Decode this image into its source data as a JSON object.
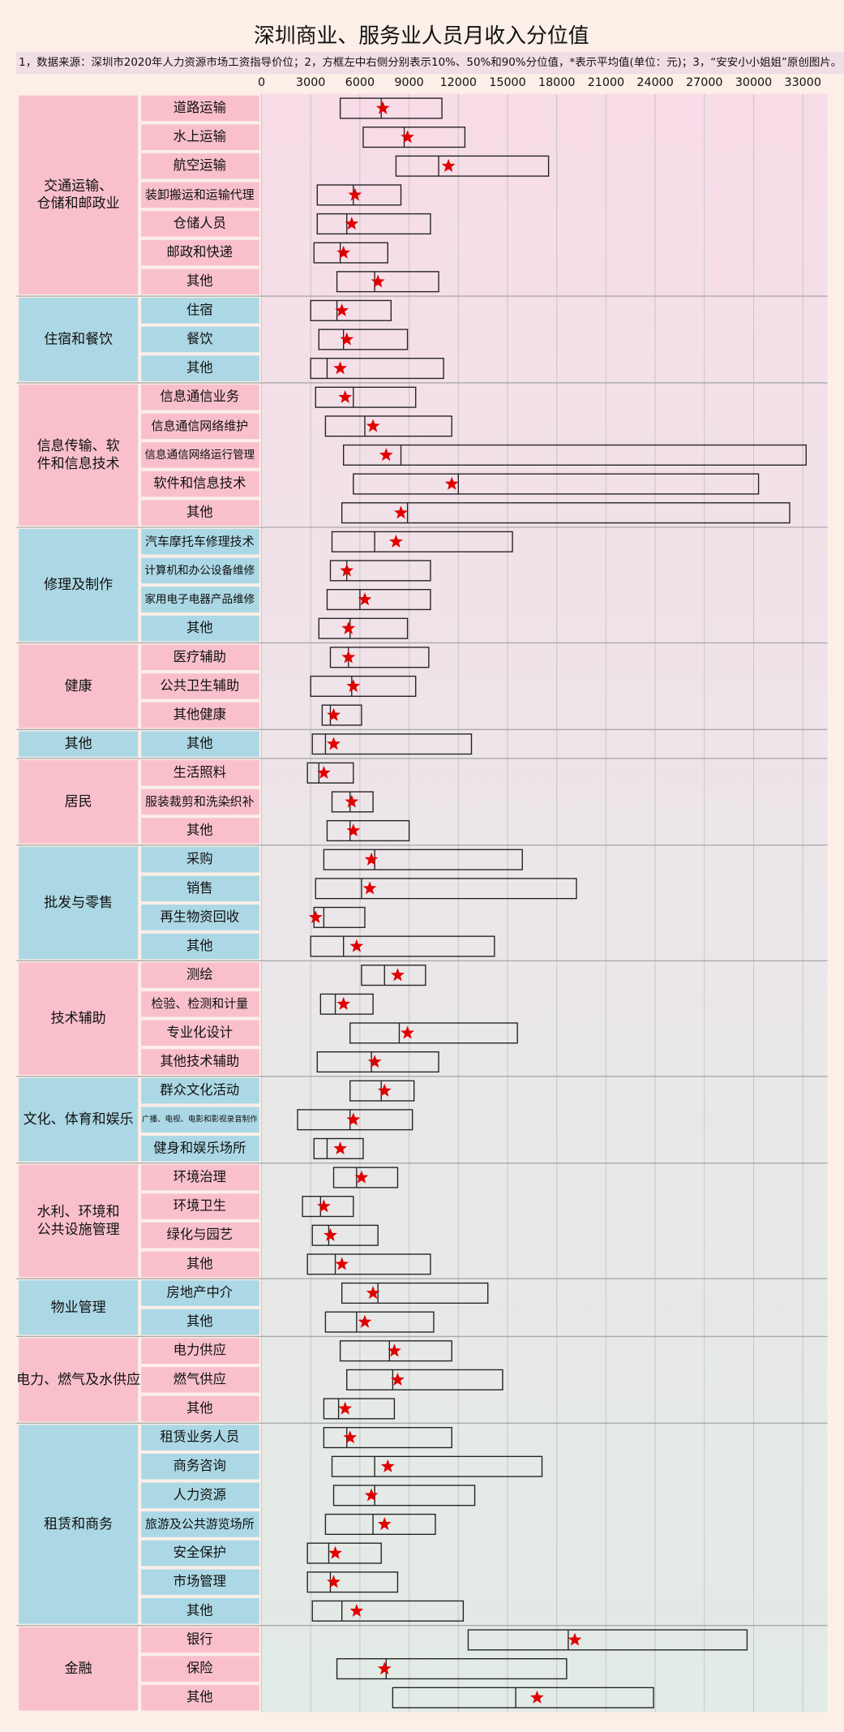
{
  "chart_data": {
    "type": "box",
    "title": "深圳商业、服务业人员月收入分位值",
    "subtitle": "1，数据来源：深圳市2020年人力资源市场工资指导价位；2，方框左中右侧分别表示10%、50%和90%分位值，*表示平均值(单位：元)；3，“安安小小姐姐”原创图片。",
    "xlim": [
      0,
      34500
    ],
    "xticks": [
      0,
      3000,
      6000,
      9000,
      12000,
      15000,
      18000,
      21000,
      24000,
      27000,
      30000,
      33000
    ],
    "grid": true,
    "group_colors": [
      "#f9c0cc",
      "#acd8e5"
    ],
    "box_color": "#222222",
    "star_color": "#e00000",
    "groups": [
      {
        "name": "交通运输、仓储和邮政业",
        "categories": [
          "道路运输",
          "水上运输",
          "航空运输",
          "装卸搬运和运输代理",
          "仓储人员",
          "邮政和快递",
          "其他"
        ],
        "p10": [
          4800,
          6200,
          8200,
          3400,
          3400,
          3200,
          4600
        ],
        "p50": [
          7300,
          8700,
          10800,
          5600,
          5200,
          4800,
          6900
        ],
        "p90": [
          11000,
          12400,
          17500,
          8500,
          10300,
          7700,
          10800
        ],
        "mean": [
          7400,
          8900,
          11400,
          5700,
          5500,
          5000,
          7100
        ]
      },
      {
        "name": "住宿和餐饮",
        "categories": [
          "住宿",
          "餐饮",
          "其他"
        ],
        "p10": [
          3000,
          3500,
          3000
        ],
        "p50": [
          4600,
          5000,
          4000
        ],
        "p90": [
          7900,
          8900,
          11100
        ],
        "mean": [
          4900,
          5200,
          4800
        ]
      },
      {
        "name": "信息传输、软件和信息技术",
        "categories": [
          "信息通信业务",
          "信息通信网络维护",
          "信息通信网络运行管理",
          "软件和信息技术",
          "其他"
        ],
        "p10": [
          3300,
          3900,
          5000,
          5600,
          4900
        ],
        "p50": [
          5600,
          6300,
          8500,
          12000,
          8900
        ],
        "p90": [
          9400,
          11600,
          33200,
          30300,
          32200
        ],
        "mean": [
          5100,
          6800,
          7600,
          11600,
          8500
        ]
      },
      {
        "name": "修理及制作",
        "categories": [
          "汽车摩托车修理技术",
          "计算机和办公设备维修",
          "家用电子电器产品维修",
          "其他"
        ],
        "p10": [
          4300,
          4200,
          4000,
          3500
        ],
        "p50": [
          6900,
          5200,
          6000,
          5400
        ],
        "p90": [
          15300,
          10300,
          10300,
          8900
        ],
        "mean": [
          8200,
          5200,
          6300,
          5300
        ]
      },
      {
        "name": "健康",
        "categories": [
          "医疗辅助",
          "公共卫生辅助",
          "其他健康"
        ],
        "p10": [
          4200,
          3000,
          3700
        ],
        "p50": [
          5300,
          5500,
          4200
        ],
        "p90": [
          10200,
          9400,
          6100
        ],
        "mean": [
          5300,
          5600,
          4400
        ]
      },
      {
        "name": "其他",
        "categories": [
          "其他"
        ],
        "p10": [
          3100
        ],
        "p50": [
          3900
        ],
        "p90": [
          12800
        ],
        "mean": [
          4400
        ]
      },
      {
        "name": "居民",
        "categories": [
          "生活照料",
          "服装裁剪和洗染织补",
          "其他"
        ],
        "p10": [
          2800,
          4300,
          4000
        ],
        "p50": [
          3500,
          5400,
          5400
        ],
        "p90": [
          5600,
          6800,
          9000
        ],
        "mean": [
          3800,
          5500,
          5600
        ]
      },
      {
        "name": "批发与零售",
        "categories": [
          "采购",
          "销售",
          "再生物资回收",
          "其他"
        ],
        "p10": [
          3800,
          3300,
          3200,
          3000
        ],
        "p50": [
          6900,
          6100,
          3800,
          5000
        ],
        "p90": [
          15900,
          19200,
          6300,
          14200
        ],
        "mean": [
          6700,
          6600,
          3300,
          5800
        ]
      },
      {
        "name": "技术辅助",
        "categories": [
          "测绘",
          "检验、检测和计量",
          "专业化设计",
          "其他技术辅助"
        ],
        "p10": [
          6100,
          3600,
          5400,
          3400
        ],
        "p50": [
          7500,
          4500,
          8400,
          6700
        ],
        "p90": [
          10000,
          6800,
          15600,
          10800
        ],
        "mean": [
          8300,
          5000,
          8900,
          6900
        ]
      },
      {
        "name": "文化、体育和娱乐",
        "categories": [
          "群众文化活动",
          "广播、电视、电影和影视录音制作",
          "健身和娱乐场所"
        ],
        "p10": [
          5400,
          2200,
          3200
        ],
        "p50": [
          7300,
          5400,
          4000
        ],
        "p90": [
          9300,
          9200,
          6200
        ],
        "mean": [
          7500,
          5600,
          4800
        ]
      },
      {
        "name": "水利、环境和公共设施管理",
        "categories": [
          "环境治理",
          "环境卫生",
          "绿化与园艺",
          "其他"
        ],
        "p10": [
          4400,
          2500,
          3100,
          2800
        ],
        "p50": [
          5800,
          3600,
          4100,
          4500
        ],
        "p90": [
          8300,
          5600,
          7100,
          10300
        ],
        "mean": [
          6100,
          3800,
          4200,
          4900
        ]
      },
      {
        "name": "物业管理",
        "categories": [
          "房地产中介",
          "其他"
        ],
        "p10": [
          4900,
          3900
        ],
        "p50": [
          7100,
          5800
        ],
        "p90": [
          13800,
          10500
        ],
        "mean": [
          6800,
          6300
        ]
      },
      {
        "name": "电力、燃气及水供应",
        "categories": [
          "电力供应",
          "燃气供应",
          "其他"
        ],
        "p10": [
          4800,
          5200,
          3800
        ],
        "p50": [
          7800,
          8000,
          4700
        ],
        "p90": [
          11600,
          14700,
          8100
        ],
        "mean": [
          8100,
          8300,
          5100
        ]
      },
      {
        "name": "租赁和商务",
        "categories": [
          "租赁业务人员",
          "商务咨询",
          "人力资源",
          "旅游及公共游览场所",
          "安全保护",
          "市场管理",
          "其他"
        ],
        "p10": [
          3800,
          4300,
          4400,
          3900,
          2800,
          2800,
          3100
        ],
        "p50": [
          5200,
          6900,
          6900,
          6800,
          4100,
          4200,
          4900
        ],
        "p90": [
          11600,
          17100,
          13000,
          10600,
          7300,
          8300,
          12300
        ],
        "mean": [
          5400,
          7700,
          6700,
          7500,
          4500,
          4400,
          5800
        ]
      },
      {
        "name": "金融",
        "categories": [
          "银行",
          "保险",
          "其他"
        ],
        "p10": [
          12600,
          4600,
          8000
        ],
        "p50": [
          18700,
          7600,
          15500
        ],
        "p90": [
          29600,
          18600,
          23900
        ],
        "mean": [
          19100,
          7500,
          16800
        ]
      }
    ]
  }
}
